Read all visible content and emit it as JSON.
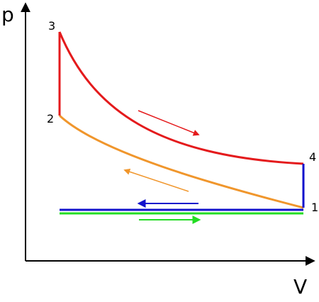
{
  "diagram": {
    "axes": {
      "y_label": "p",
      "x_label": "V"
    },
    "points": [
      {
        "id": "1",
        "label": "1"
      },
      {
        "id": "2",
        "label": "2"
      },
      {
        "id": "3",
        "label": "3"
      },
      {
        "id": "4",
        "label": "4"
      }
    ],
    "colors": {
      "axis": "#000000",
      "high_curve": "#e41a1c",
      "low_curve": "#f0962c",
      "exhaust_line": "#1111cc",
      "intake_line": "#22dd22"
    }
  }
}
